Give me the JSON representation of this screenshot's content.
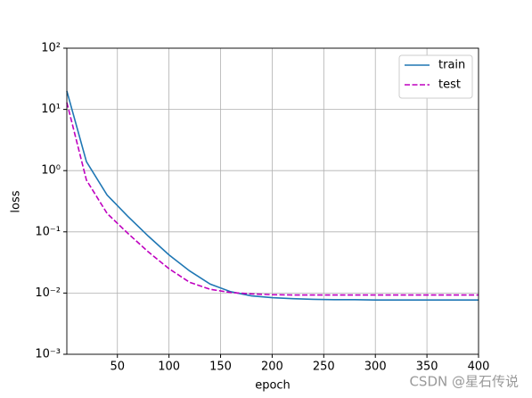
{
  "chart_data": {
    "type": "line",
    "xlabel": "epoch",
    "ylabel": "loss",
    "x": [
      1,
      20,
      40,
      60,
      80,
      100,
      120,
      140,
      160,
      180,
      200,
      220,
      240,
      260,
      280,
      300,
      320,
      340,
      360,
      380,
      400
    ],
    "series": [
      {
        "name": "train",
        "color": "#1f77b4",
        "dash": false,
        "values": [
          20,
          1.4,
          0.4,
          0.18,
          0.085,
          0.042,
          0.023,
          0.014,
          0.0105,
          0.009,
          0.0084,
          0.0081,
          0.0079,
          0.0078,
          0.0078,
          0.0077,
          0.0077,
          0.0077,
          0.0077,
          0.0077,
          0.0077
        ]
      },
      {
        "name": "test",
        "color": "#bf00bf",
        "dash": true,
        "values": [
          13,
          0.7,
          0.2,
          0.095,
          0.047,
          0.025,
          0.015,
          0.0115,
          0.0102,
          0.0097,
          0.0094,
          0.0093,
          0.0093,
          0.0093,
          0.0093,
          0.0093,
          0.0093,
          0.0093,
          0.0093,
          0.0093,
          0.0093
        ]
      }
    ],
    "xlim": [
      1,
      400
    ],
    "xticks": [
      50,
      100,
      150,
      200,
      250,
      300,
      350,
      400
    ],
    "ylim": [
      0.001,
      100
    ],
    "ylog": true,
    "yticks": [
      {
        "value": 0.001,
        "label": "10⁻³"
      },
      {
        "value": 0.01,
        "label": "10⁻²"
      },
      {
        "value": 0.1,
        "label": "10⁻¹"
      },
      {
        "value": 1,
        "label": "10⁰"
      },
      {
        "value": 10,
        "label": "10¹"
      },
      {
        "value": 100,
        "label": "10²"
      }
    ],
    "grid": true,
    "legend": "upper-right",
    "watermark": "CSDN @星石传说"
  }
}
